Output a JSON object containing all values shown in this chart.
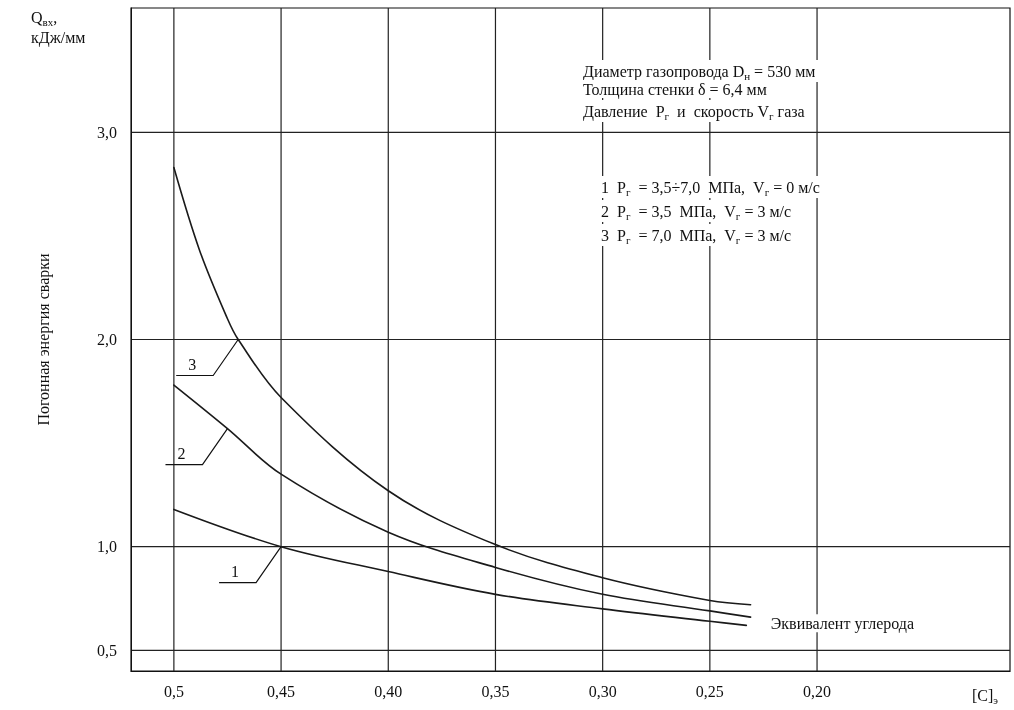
{
  "chart_data": {
    "type": "line",
    "ylabel": "Погонная энергия сварки",
    "xlabel": "[C]$_{э}$",
    "xlim": [
      0.52,
      0.11
    ],
    "ylim": [
      0.4,
      3.6
    ],
    "xticks": [
      {
        "value": 0.5,
        "label": "0,5"
      },
      {
        "value": 0.45,
        "label": "0,45"
      },
      {
        "value": 0.4,
        "label": "0,40"
      },
      {
        "value": 0.35,
        "label": "0,35"
      },
      {
        "value": 0.3,
        "label": "0,30"
      },
      {
        "value": 0.25,
        "label": "0,25"
      },
      {
        "value": 0.2,
        "label": "0,20"
      }
    ],
    "yticks": [
      {
        "value": 0.5,
        "label": "0,5"
      },
      {
        "value": 1.0,
        "label": "1,0"
      },
      {
        "value": 2.0,
        "label": "2,0"
      },
      {
        "value": 3.0,
        "label": "3,0"
      }
    ],
    "grid": true,
    "marker": "none",
    "line_style": "solid",
    "series": [
      {
        "color": "#1a1a1a",
        "x": [
          0.5,
          0.45,
          0.4,
          0.35,
          0.3,
          0.25,
          0.233
        ],
        "values": [
          1.18,
          1.0,
          0.88,
          0.77,
          0.7,
          0.64,
          0.62
        ]
      },
      {
        "color": "#1a1a1a",
        "x": [
          0.5,
          0.475,
          0.45,
          0.4,
          0.35,
          0.3,
          0.25,
          0.231
        ],
        "values": [
          1.78,
          1.57,
          1.35,
          1.07,
          0.9,
          0.77,
          0.69,
          0.66
        ]
      },
      {
        "color": "#1a1a1a",
        "x": [
          0.5,
          0.488,
          0.475,
          0.47,
          0.45,
          0.4,
          0.35,
          0.3,
          0.25,
          0.231
        ],
        "values": [
          2.83,
          2.43,
          2.1,
          2.0,
          1.72,
          1.27,
          1.01,
          0.85,
          0.74,
          0.72
        ]
      }
    ],
    "annotations": [
      "Q$_{вх}$,\nкДж/мм",
      "Диаметр газопровода D$_{н}$ = 530 мм",
      "Толщина стенки δ = 6,4 мм",
      "Давление  P$_{г}$  и  скорость V$_{г}$ газа",
      "1  P$_{г}$  = 3,5÷7,0  МПа,  V$_{г}$ = 0 м/с",
      "2  P$_{г}$  = 3,5  МПа,  V$_{г}$ = 3 м/с",
      "3  P$_{г}$  = 7,0  МПа,  V$_{г}$ = 3 м/с",
      "Эквивалент углерода",
      {
        "text": "1",
        "x": 0.45,
        "y": 1.0
      },
      {
        "text": "2",
        "x": 0.475,
        "y": 1.57
      },
      {
        "text": "3",
        "x": 0.47,
        "y": 2.0
      }
    ]
  }
}
